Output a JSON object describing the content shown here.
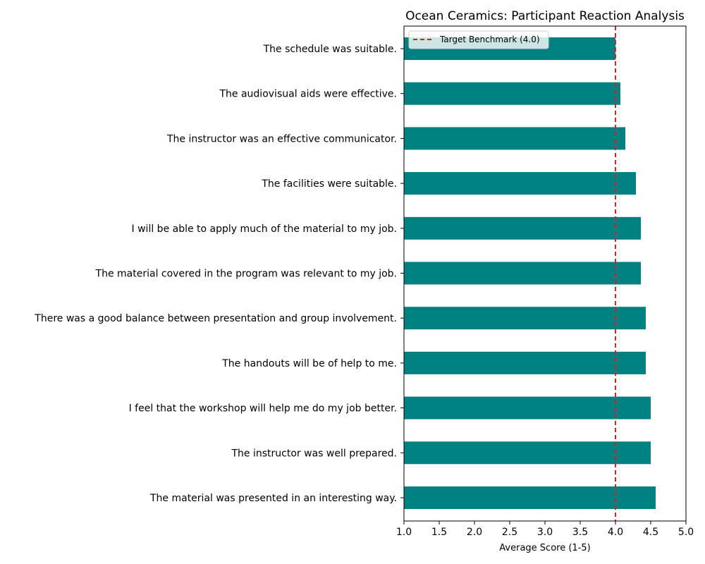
{
  "chart_data": {
    "type": "bar",
    "orientation": "horizontal",
    "title": "Ocean Ceramics: Participant Reaction Analysis",
    "xlabel": "Average Score (1-5)",
    "ylabel": "",
    "xlim": [
      1.0,
      5.0
    ],
    "xticks": [
      "1.0",
      "1.5",
      "2.0",
      "2.5",
      "3.0",
      "3.5",
      "4.0",
      "4.5",
      "5.0"
    ],
    "categories": [
      "The schedule was suitable.",
      "The audiovisual aids were effective.",
      "The instructor was an effective communicator.",
      "The facilities were suitable.",
      "I will be able to apply much of the material to my job.",
      "The material covered in the program was relevant to my job.",
      "There was a good balance between presentation and group involvement.",
      "The handouts will be of help to me.",
      "I feel that the workshop will help me do my job better.",
      "The instructor was well prepared.",
      "The material was presented in an interesting way."
    ],
    "values": [
      4.0,
      4.07,
      4.14,
      4.29,
      4.36,
      4.36,
      4.43,
      4.43,
      4.5,
      4.5,
      4.57
    ],
    "bar_color": "#008080",
    "reference_line": {
      "value": 4.0,
      "label": "Target Benchmark (4.0)",
      "color": "#e31a1c",
      "style": "dashed"
    },
    "legend": {
      "placement": "top-left",
      "entries": [
        "Target Benchmark (4.0)"
      ]
    },
    "grid": false
  }
}
